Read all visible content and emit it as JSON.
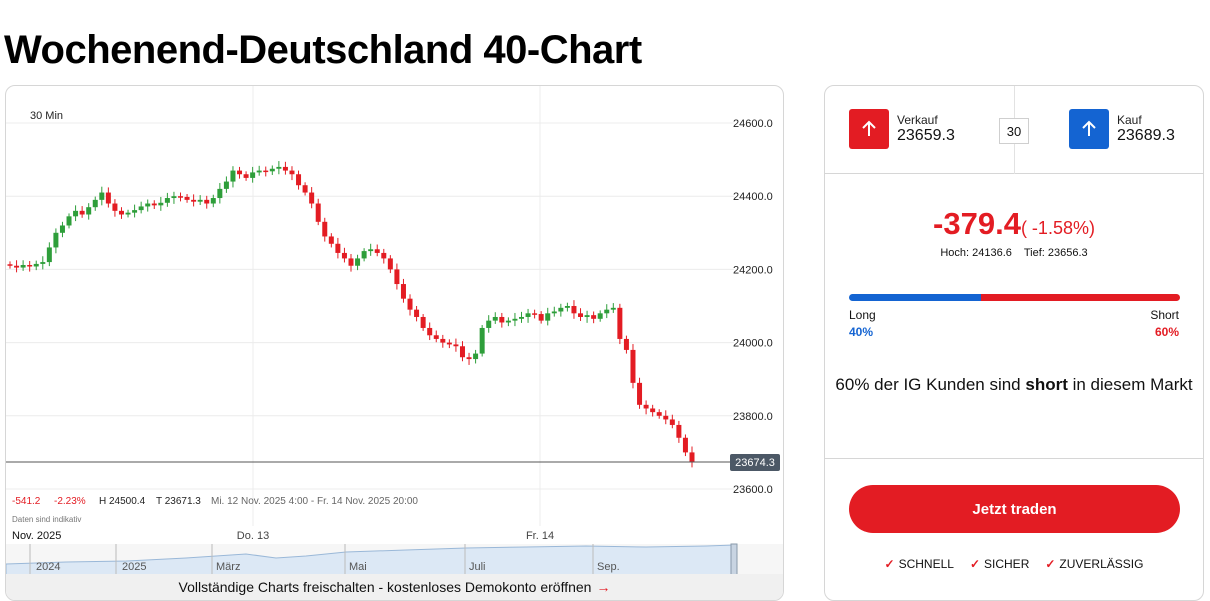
{
  "page": {
    "title": "Wochenend-Deutschland 40-Chart"
  },
  "chart": {
    "interval": "30 Min",
    "stats": {
      "change": "-541.2",
      "pct": "-2.23%",
      "high": "H 24500.4",
      "low": "T 23671.3",
      "range": "Mi. 12 Nov. 2025 4:00 - Fr. 14 Nov. 2025 20:00"
    },
    "disclaimer": "Daten sind indikativ",
    "month_label": "Nov. 2025",
    "day_labels": [
      "Do. 13",
      "Fr. 14"
    ],
    "nav_labels": [
      "2024",
      "2025",
      "März",
      "Mai",
      "Juli",
      "Sep."
    ],
    "current_price_label": "23674.3",
    "unlock_text": "Vollständige Charts freischalten - kostenloses Demokonto eröffnen",
    "unlock_arrow": "→",
    "colors": {
      "up": "#2e9e3a",
      "down": "#e31c23"
    }
  },
  "chart_data": {
    "type": "candlestick",
    "y_ticks": [
      "24600.0",
      "24400.0",
      "24200.0",
      "24000.0",
      "23800.0",
      "23600.0"
    ],
    "ylim": [
      23560,
      24660
    ],
    "close_path": [
      24210,
      24205,
      24212,
      24208,
      24215,
      24220,
      24260,
      24300,
      24320,
      24345,
      24360,
      24350,
      24370,
      24390,
      24410,
      24380,
      24360,
      24350,
      24355,
      24362,
      24372,
      24380,
      24375,
      24382,
      24395,
      24400,
      24398,
      24390,
      24385,
      24390,
      24380,
      24395,
      24420,
      24440,
      24470,
      24460,
      24450,
      24465,
      24470,
      24468,
      24475,
      24480,
      24470,
      24460,
      24430,
      24410,
      24380,
      24330,
      24290,
      24270,
      24245,
      24230,
      24210,
      24230,
      24250,
      24255,
      24245,
      24230,
      24200,
      24160,
      24120,
      24090,
      24070,
      24040,
      24020,
      24010,
      24000,
      23995,
      23990,
      23960,
      23955,
      23970,
      24040,
      24060,
      24070,
      24055,
      24060,
      24065,
      24070,
      24080,
      24078,
      24060,
      24080,
      24085,
      24095,
      24100,
      24080,
      24070,
      24075,
      24065,
      24080,
      24090,
      24095,
      24010,
      23980,
      23890,
      23830,
      23820,
      23810,
      23800,
      23790,
      23775,
      23740,
      23700,
      23674
    ]
  },
  "trade": {
    "sell": {
      "label": "Verkauf",
      "value": "23659.3"
    },
    "spread": "30",
    "buy": {
      "label": "Kauf",
      "value": "23689.3"
    },
    "change_value": "-379.4",
    "change_pct": "( -1.58%)",
    "high": "Hoch: 24136.6",
    "low": "Tief: 23656.3",
    "sentiment": {
      "long_label": "Long",
      "long_pct": "40%",
      "long_value": 40,
      "short_label": "Short",
      "short_pct": "60%",
      "short_value": 60,
      "text_pre": "60% der IG Kunden sind ",
      "text_bold": "short",
      "text_post": " in diesem Markt"
    },
    "cta": "Jetzt traden",
    "features": [
      "SCHNELL",
      "SICHER",
      "ZUVERLÄSSIG"
    ],
    "colors": {
      "sell": "#e31c23",
      "buy": "#1464d2"
    }
  }
}
